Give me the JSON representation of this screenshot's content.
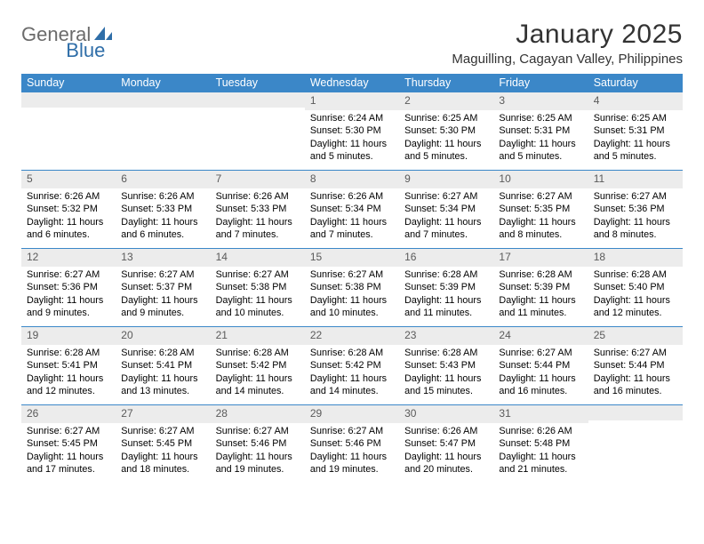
{
  "logo": {
    "text1": "General",
    "text2": "Blue",
    "shape_color": "#2f6ea8"
  },
  "title": "January 2025",
  "location": "Maguilling, Cagayan Valley, Philippines",
  "header_bg": "#3b87c8",
  "days_header": [
    "Sunday",
    "Monday",
    "Tuesday",
    "Wednesday",
    "Thursday",
    "Friday",
    "Saturday"
  ],
  "weeks": [
    [
      null,
      null,
      null,
      {
        "n": "1",
        "sr": "6:24 AM",
        "ss": "5:30 PM",
        "dl": "11 hours and 5 minutes."
      },
      {
        "n": "2",
        "sr": "6:25 AM",
        "ss": "5:30 PM",
        "dl": "11 hours and 5 minutes."
      },
      {
        "n": "3",
        "sr": "6:25 AM",
        "ss": "5:31 PM",
        "dl": "11 hours and 5 minutes."
      },
      {
        "n": "4",
        "sr": "6:25 AM",
        "ss": "5:31 PM",
        "dl": "11 hours and 5 minutes."
      }
    ],
    [
      {
        "n": "5",
        "sr": "6:26 AM",
        "ss": "5:32 PM",
        "dl": "11 hours and 6 minutes."
      },
      {
        "n": "6",
        "sr": "6:26 AM",
        "ss": "5:33 PM",
        "dl": "11 hours and 6 minutes."
      },
      {
        "n": "7",
        "sr": "6:26 AM",
        "ss": "5:33 PM",
        "dl": "11 hours and 7 minutes."
      },
      {
        "n": "8",
        "sr": "6:26 AM",
        "ss": "5:34 PM",
        "dl": "11 hours and 7 minutes."
      },
      {
        "n": "9",
        "sr": "6:27 AM",
        "ss": "5:34 PM",
        "dl": "11 hours and 7 minutes."
      },
      {
        "n": "10",
        "sr": "6:27 AM",
        "ss": "5:35 PM",
        "dl": "11 hours and 8 minutes."
      },
      {
        "n": "11",
        "sr": "6:27 AM",
        "ss": "5:36 PM",
        "dl": "11 hours and 8 minutes."
      }
    ],
    [
      {
        "n": "12",
        "sr": "6:27 AM",
        "ss": "5:36 PM",
        "dl": "11 hours and 9 minutes."
      },
      {
        "n": "13",
        "sr": "6:27 AM",
        "ss": "5:37 PM",
        "dl": "11 hours and 9 minutes."
      },
      {
        "n": "14",
        "sr": "6:27 AM",
        "ss": "5:38 PM",
        "dl": "11 hours and 10 minutes."
      },
      {
        "n": "15",
        "sr": "6:27 AM",
        "ss": "5:38 PM",
        "dl": "11 hours and 10 minutes."
      },
      {
        "n": "16",
        "sr": "6:28 AM",
        "ss": "5:39 PM",
        "dl": "11 hours and 11 minutes."
      },
      {
        "n": "17",
        "sr": "6:28 AM",
        "ss": "5:39 PM",
        "dl": "11 hours and 11 minutes."
      },
      {
        "n": "18",
        "sr": "6:28 AM",
        "ss": "5:40 PM",
        "dl": "11 hours and 12 minutes."
      }
    ],
    [
      {
        "n": "19",
        "sr": "6:28 AM",
        "ss": "5:41 PM",
        "dl": "11 hours and 12 minutes."
      },
      {
        "n": "20",
        "sr": "6:28 AM",
        "ss": "5:41 PM",
        "dl": "11 hours and 13 minutes."
      },
      {
        "n": "21",
        "sr": "6:28 AM",
        "ss": "5:42 PM",
        "dl": "11 hours and 14 minutes."
      },
      {
        "n": "22",
        "sr": "6:28 AM",
        "ss": "5:42 PM",
        "dl": "11 hours and 14 minutes."
      },
      {
        "n": "23",
        "sr": "6:28 AM",
        "ss": "5:43 PM",
        "dl": "11 hours and 15 minutes."
      },
      {
        "n": "24",
        "sr": "6:27 AM",
        "ss": "5:44 PM",
        "dl": "11 hours and 16 minutes."
      },
      {
        "n": "25",
        "sr": "6:27 AM",
        "ss": "5:44 PM",
        "dl": "11 hours and 16 minutes."
      }
    ],
    [
      {
        "n": "26",
        "sr": "6:27 AM",
        "ss": "5:45 PM",
        "dl": "11 hours and 17 minutes."
      },
      {
        "n": "27",
        "sr": "6:27 AM",
        "ss": "5:45 PM",
        "dl": "11 hours and 18 minutes."
      },
      {
        "n": "28",
        "sr": "6:27 AM",
        "ss": "5:46 PM",
        "dl": "11 hours and 19 minutes."
      },
      {
        "n": "29",
        "sr": "6:27 AM",
        "ss": "5:46 PM",
        "dl": "11 hours and 19 minutes."
      },
      {
        "n": "30",
        "sr": "6:26 AM",
        "ss": "5:47 PM",
        "dl": "11 hours and 20 minutes."
      },
      {
        "n": "31",
        "sr": "6:26 AM",
        "ss": "5:48 PM",
        "dl": "11 hours and 21 minutes."
      },
      null
    ]
  ],
  "labels": {
    "sunrise": "Sunrise:",
    "sunset": "Sunset:",
    "daylight": "Daylight:"
  },
  "styling": {
    "daynum_bg": "#ececec",
    "daynum_color": "#5a5a5a",
    "border_color": "#3b87c8",
    "body_font_size": 10.8,
    "header_font_size": 12.5,
    "title_font_size": 30,
    "location_font_size": 15
  }
}
